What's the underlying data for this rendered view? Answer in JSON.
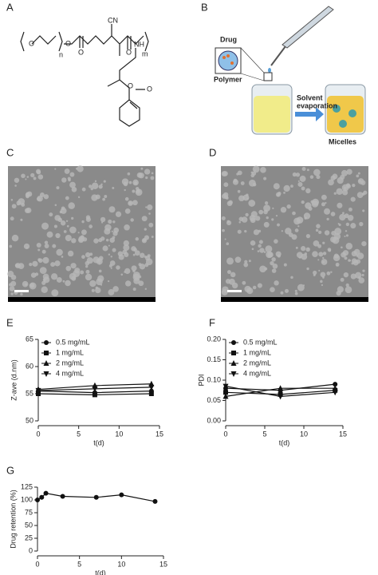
{
  "panels": {
    "labels": [
      "A",
      "B",
      "C",
      "D",
      "E",
      "F",
      "G"
    ]
  },
  "structure": {
    "atoms": [
      "O",
      "n",
      "O",
      "O",
      "CN",
      "m",
      "O",
      "NH",
      "O",
      "O"
    ]
  },
  "diagram": {
    "drug": "Drug",
    "polymer": "Polymer",
    "solvent": [
      "Solvent",
      "evaporation"
    ],
    "micelles": "Micelles"
  },
  "chart_data": [
    {
      "type": "line",
      "ylabel": "Z-ave (d.nm)",
      "xlabel": "t(d)",
      "x": [
        0,
        7,
        14
      ],
      "xlim": [
        0,
        15
      ],
      "xticks": [
        0,
        5,
        10,
        15
      ],
      "ylim": [
        50,
        65
      ],
      "yticks": [
        50,
        55,
        60,
        65
      ],
      "grid": false,
      "legend": "upper left",
      "series": [
        {
          "name": "0.5 mg/mL",
          "color": "#111111",
          "marker": "circle",
          "values": [
            55.5,
            55.2,
            55.5
          ]
        },
        {
          "name": "1 mg/mL",
          "color": "#111111",
          "marker": "square",
          "values": [
            55.0,
            54.8,
            55.0
          ]
        },
        {
          "name": "2 mg/mL",
          "color": "#111111",
          "marker": "triangle-up",
          "values": [
            55.8,
            56.5,
            56.8
          ]
        },
        {
          "name": "4 mg/mL",
          "color": "#111111",
          "marker": "triangle-down",
          "values": [
            55.6,
            55.9,
            56.2
          ]
        }
      ]
    },
    {
      "type": "line",
      "ylabel": "PDI",
      "xlabel": "t(d)",
      "x": [
        0,
        7,
        14
      ],
      "xlim": [
        0,
        15
      ],
      "xticks": [
        0,
        5,
        10,
        15
      ],
      "ylim": [
        0,
        0.2
      ],
      "yticks": [
        {
          "value": 0,
          "label": "0.00"
        },
        0.05,
        {
          "value": 0.1,
          "label": "0.10"
        },
        0.15,
        {
          "value": 0.2,
          "label": "0.20"
        }
      ],
      "grid": false,
      "legend": "upper left",
      "series": [
        {
          "name": "0.5 mg/mL",
          "color": "#111111",
          "marker": "circle",
          "values": [
            0.08,
            0.075,
            0.09
          ]
        },
        {
          "name": "1 mg/mL",
          "color": "#111111",
          "marker": "square",
          "values": [
            0.07,
            0.065,
            0.075
          ]
        },
        {
          "name": "2 mg/mL",
          "color": "#111111",
          "marker": "triangle-up",
          "values": [
            0.06,
            0.08,
            0.08
          ]
        },
        {
          "name": "4 mg/mL",
          "color": "#111111",
          "marker": "triangle-down",
          "values": [
            0.085,
            0.06,
            0.07
          ]
        }
      ]
    },
    {
      "type": "line",
      "ylabel": "Drug retention (%)",
      "xlabel": "t(d)",
      "x": [
        0,
        0.5,
        1,
        3,
        7,
        10,
        14
      ],
      "xlim": [
        0,
        15
      ],
      "xticks": [
        0,
        5,
        10,
        15
      ],
      "ylim": [
        0,
        125
      ],
      "yticks": [
        0,
        25,
        50,
        75,
        100,
        125
      ],
      "grid": false,
      "series": [
        {
          "color": "#111111",
          "marker": "circle",
          "values": [
            100,
            105,
            113,
            107,
            105,
            110,
            97
          ]
        }
      ]
    }
  ]
}
